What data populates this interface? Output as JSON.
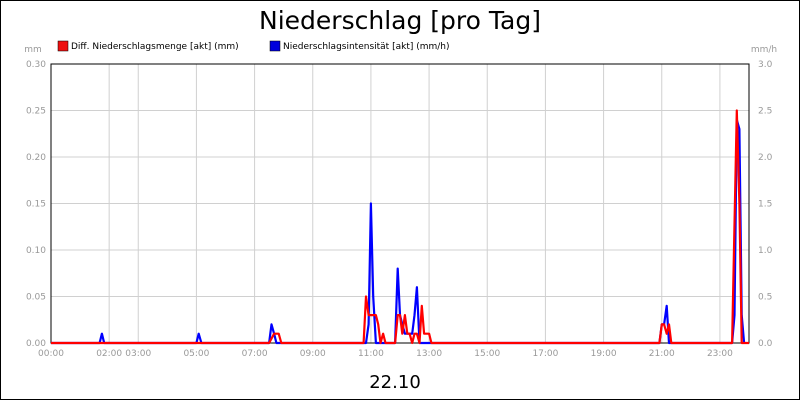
{
  "chart_data": {
    "type": "line",
    "title": "Niederschlag [pro Tag]",
    "xlabel": "22.10",
    "ylabel_left": "mm",
    "ylabel_right": "mm/h",
    "xlim": [
      0,
      24
    ],
    "ylim_left": [
      0,
      0.3
    ],
    "ylim_right": [
      0,
      3.0
    ],
    "grid": true,
    "legend_position": "top-left",
    "x_tick_labels": [
      {
        "x": 0,
        "label": "00:00"
      },
      {
        "x": 2,
        "label": "02:00"
      },
      {
        "x": 3,
        "label": "03:00"
      },
      {
        "x": 5,
        "label": "05:00"
      },
      {
        "x": 7,
        "label": "07:00"
      },
      {
        "x": 9,
        "label": "09:00"
      },
      {
        "x": 11,
        "label": "11:00"
      },
      {
        "x": 13,
        "label": "13:00"
      },
      {
        "x": 15,
        "label": "15:00"
      },
      {
        "x": 17,
        "label": "17:00"
      },
      {
        "x": 19,
        "label": "19:00"
      },
      {
        "x": 21,
        "label": "21:00"
      },
      {
        "x": 23,
        "label": "23:00"
      }
    ],
    "y_left_ticks": [
      0,
      0.05,
      0.1,
      0.15,
      0.2,
      0.25,
      0.3
    ],
    "y_left_tick_labels": [
      "0.00",
      "0.05",
      "0.10",
      "0.15",
      "0.20",
      "0.25",
      "0.30"
    ],
    "y_right_ticks": [
      0,
      0.5,
      1.0,
      1.5,
      2.0,
      2.5,
      3.0
    ],
    "y_right_tick_labels": [
      "0.0",
      "0.5",
      "1.0",
      "1.5",
      "2.0",
      "2.5",
      "3.0"
    ],
    "series": [
      {
        "name": "Diff. Niederschlagsmenge [akt] (mm)",
        "color": "#ff0000",
        "axis": "left",
        "points": [
          [
            0,
            0
          ],
          [
            7.5,
            0
          ],
          [
            7.67,
            0.01
          ],
          [
            7.83,
            0.01
          ],
          [
            7.92,
            0
          ],
          [
            10.75,
            0
          ],
          [
            10.83,
            0.05
          ],
          [
            10.92,
            0.03
          ],
          [
            11.08,
            0.03
          ],
          [
            11.17,
            0.03
          ],
          [
            11.25,
            0.02
          ],
          [
            11.33,
            0
          ],
          [
            11.42,
            0.01
          ],
          [
            11.5,
            0
          ],
          [
            11.83,
            0
          ],
          [
            11.92,
            0.03
          ],
          [
            12.0,
            0.03
          ],
          [
            12.08,
            0.01
          ],
          [
            12.17,
            0.03
          ],
          [
            12.25,
            0.01
          ],
          [
            12.33,
            0.01
          ],
          [
            12.42,
            0
          ],
          [
            12.5,
            0.01
          ],
          [
            12.58,
            0.01
          ],
          [
            12.67,
            0
          ],
          [
            12.75,
            0.04
          ],
          [
            12.83,
            0.01
          ],
          [
            12.92,
            0.01
          ],
          [
            13.0,
            0.01
          ],
          [
            13.08,
            0
          ],
          [
            20.92,
            0
          ],
          [
            21.0,
            0.02
          ],
          [
            21.08,
            0.02
          ],
          [
            21.17,
            0.01
          ],
          [
            21.25,
            0.02
          ],
          [
            21.33,
            0
          ],
          [
            23.42,
            0
          ],
          [
            23.58,
            0.25
          ],
          [
            23.67,
            0.15
          ],
          [
            23.75,
            0
          ],
          [
            24,
            0
          ]
        ]
      },
      {
        "name": "Niederschlagsintensität [akt] (mm/h)",
        "color": "#0000ff",
        "axis": "right",
        "points": [
          [
            0,
            0
          ],
          [
            1.67,
            0
          ],
          [
            1.75,
            0.1
          ],
          [
            1.83,
            0
          ],
          [
            5.0,
            0
          ],
          [
            5.08,
            0.1
          ],
          [
            5.17,
            0
          ],
          [
            7.5,
            0
          ],
          [
            7.58,
            0.2
          ],
          [
            7.67,
            0.1
          ],
          [
            7.75,
            0
          ],
          [
            10.83,
            0
          ],
          [
            10.92,
            0.2
          ],
          [
            11.0,
            1.5
          ],
          [
            11.08,
            0.5
          ],
          [
            11.17,
            0
          ],
          [
            11.83,
            0
          ],
          [
            11.92,
            0.8
          ],
          [
            12.0,
            0.3
          ],
          [
            12.08,
            0.2
          ],
          [
            12.17,
            0.1
          ],
          [
            12.25,
            0.1
          ],
          [
            12.33,
            0.1
          ],
          [
            12.42,
            0.1
          ],
          [
            12.5,
            0.3
          ],
          [
            12.58,
            0.6
          ],
          [
            12.67,
            0
          ],
          [
            20.92,
            0
          ],
          [
            21.0,
            0.2
          ],
          [
            21.08,
            0.2
          ],
          [
            21.17,
            0.4
          ],
          [
            21.25,
            0
          ],
          [
            23.42,
            0
          ],
          [
            23.5,
            0.3
          ],
          [
            23.58,
            2.4
          ],
          [
            23.67,
            2.3
          ],
          [
            23.75,
            0.3
          ],
          [
            23.83,
            0
          ]
        ]
      }
    ]
  }
}
